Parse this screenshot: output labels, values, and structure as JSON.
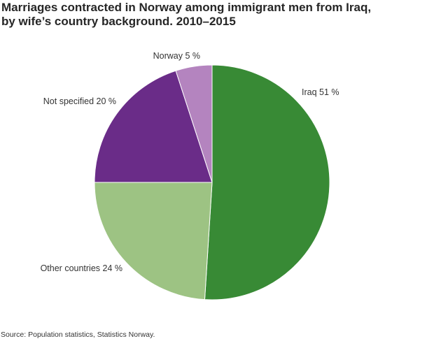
{
  "title": {
    "line1": "Marriages contracted in Norway among immigrant men from Iraq,",
    "line2": "by wife’s country background. 2010–2015"
  },
  "source": "Source: Population statistics, Statistics Norway.",
  "chart_data": {
    "type": "pie",
    "title": "Marriages contracted in Norway among immigrant men from Iraq, by wife’s country background. 2010–2015",
    "unit": "%",
    "slices": [
      {
        "label": "Iraq 51 %",
        "value": 51,
        "color": "#388a35"
      },
      {
        "label": "Other countries 24 %",
        "value": 24,
        "color": "#9dc383"
      },
      {
        "label": "Not specified 20 %",
        "value": 20,
        "color": "#6a2c88"
      },
      {
        "label": "Norway 5 %",
        "value": 5,
        "color": "#b484bf"
      }
    ],
    "start_angle": "12 o'clock",
    "direction": "clockwise"
  }
}
